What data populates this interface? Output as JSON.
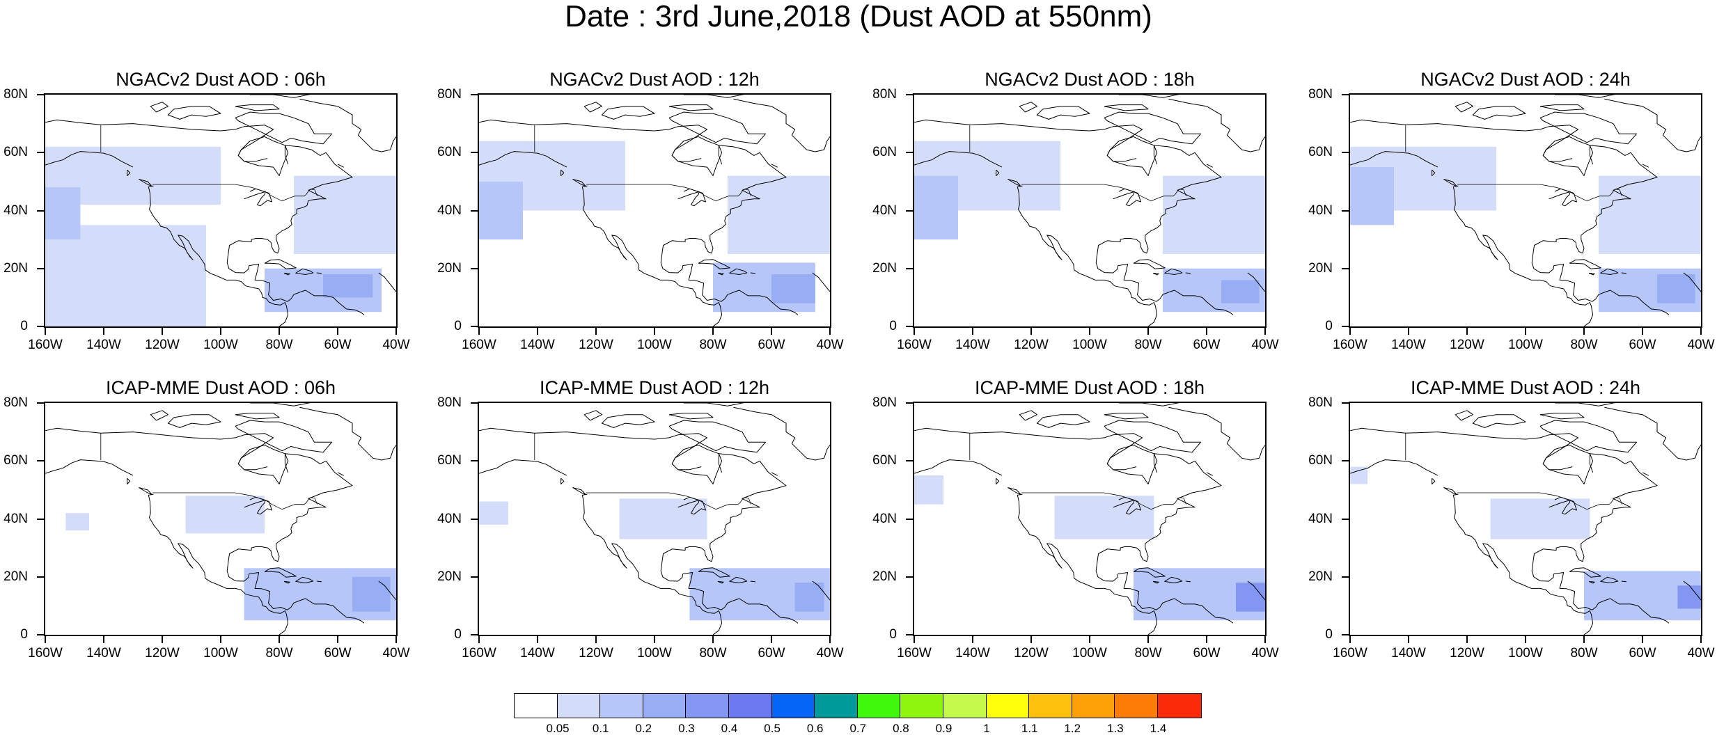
{
  "title": "Date : 3rd June,2018 (Dust AOD at 550nm)",
  "panels": [
    {
      "title": "NGACv2 Dust AOD : 06h",
      "model": "NGACv2",
      "hour": "06h",
      "field": [
        {
          "lat": [
            42,
            62
          ],
          "lon": [
            -160,
            -100
          ],
          "aod": 0.07
        },
        {
          "lat": [
            0,
            35
          ],
          "lon": [
            -160,
            -105
          ],
          "aod": 0.07
        },
        {
          "lat": [
            25,
            52
          ],
          "lon": [
            -75,
            -40
          ],
          "aod": 0.07
        },
        {
          "lat": [
            30,
            48
          ],
          "lon": [
            -160,
            -148
          ],
          "aod": 0.15
        },
        {
          "lat": [
            5,
            20
          ],
          "lon": [
            -85,
            -45
          ],
          "aod": 0.15
        },
        {
          "lat": [
            10,
            18
          ],
          "lon": [
            -65,
            -48
          ],
          "aod": 0.25
        }
      ]
    },
    {
      "title": "NGACv2 Dust AOD : 12h",
      "model": "NGACv2",
      "hour": "12h",
      "field": [
        {
          "lat": [
            40,
            64
          ],
          "lon": [
            -160,
            -110
          ],
          "aod": 0.07
        },
        {
          "lat": [
            25,
            52
          ],
          "lon": [
            -75,
            -40
          ],
          "aod": 0.07
        },
        {
          "lat": [
            30,
            50
          ],
          "lon": [
            -160,
            -145
          ],
          "aod": 0.15
        },
        {
          "lat": [
            5,
            22
          ],
          "lon": [
            -80,
            -45
          ],
          "aod": 0.15
        },
        {
          "lat": [
            8,
            18
          ],
          "lon": [
            -60,
            -45
          ],
          "aod": 0.25
        }
      ]
    },
    {
      "title": "NGACv2 Dust AOD : 18h",
      "model": "NGACv2",
      "hour": "18h",
      "field": [
        {
          "lat": [
            40,
            64
          ],
          "lon": [
            -160,
            -110
          ],
          "aod": 0.07
        },
        {
          "lat": [
            25,
            52
          ],
          "lon": [
            -75,
            -40
          ],
          "aod": 0.07
        },
        {
          "lat": [
            30,
            52
          ],
          "lon": [
            -160,
            -145
          ],
          "aod": 0.15
        },
        {
          "lat": [
            5,
            20
          ],
          "lon": [
            -75,
            -40
          ],
          "aod": 0.15
        },
        {
          "lat": [
            8,
            16
          ],
          "lon": [
            -55,
            -42
          ],
          "aod": 0.25
        }
      ]
    },
    {
      "title": "NGACv2 Dust AOD : 24h",
      "model": "NGACv2",
      "hour": "24h",
      "field": [
        {
          "lat": [
            40,
            62
          ],
          "lon": [
            -160,
            -110
          ],
          "aod": 0.07
        },
        {
          "lat": [
            25,
            52
          ],
          "lon": [
            -75,
            -40
          ],
          "aod": 0.07
        },
        {
          "lat": [
            35,
            55
          ],
          "lon": [
            -160,
            -145
          ],
          "aod": 0.15
        },
        {
          "lat": [
            5,
            20
          ],
          "lon": [
            -75,
            -40
          ],
          "aod": 0.15
        },
        {
          "lat": [
            8,
            18
          ],
          "lon": [
            -55,
            -42
          ],
          "aod": 0.25
        }
      ]
    },
    {
      "title": "ICAP-MME Dust AOD : 06h",
      "model": "ICAP-MME",
      "hour": "06h",
      "field": [
        {
          "lat": [
            35,
            48
          ],
          "lon": [
            -112,
            -85
          ],
          "aod": 0.07
        },
        {
          "lat": [
            36,
            42
          ],
          "lon": [
            -153,
            -145
          ],
          "aod": 0.07
        },
        {
          "lat": [
            5,
            23
          ],
          "lon": [
            -92,
            -40
          ],
          "aod": 0.15
        },
        {
          "lat": [
            8,
            20
          ],
          "lon": [
            -55,
            -42
          ],
          "aod": 0.25
        }
      ]
    },
    {
      "title": "ICAP-MME Dust AOD : 12h",
      "model": "ICAP-MME",
      "hour": "12h",
      "field": [
        {
          "lat": [
            33,
            47
          ],
          "lon": [
            -112,
            -82
          ],
          "aod": 0.07
        },
        {
          "lat": [
            38,
            46
          ],
          "lon": [
            -160,
            -150
          ],
          "aod": 0.07
        },
        {
          "lat": [
            5,
            23
          ],
          "lon": [
            -88,
            -40
          ],
          "aod": 0.15
        },
        {
          "lat": [
            8,
            18
          ],
          "lon": [
            -52,
            -42
          ],
          "aod": 0.25
        }
      ]
    },
    {
      "title": "ICAP-MME Dust AOD : 18h",
      "model": "ICAP-MME",
      "hour": "18h",
      "field": [
        {
          "lat": [
            33,
            48
          ],
          "lon": [
            -112,
            -78
          ],
          "aod": 0.07
        },
        {
          "lat": [
            45,
            55
          ],
          "lon": [
            -160,
            -150
          ],
          "aod": 0.07
        },
        {
          "lat": [
            5,
            23
          ],
          "lon": [
            -85,
            -40
          ],
          "aod": 0.15
        },
        {
          "lat": [
            8,
            18
          ],
          "lon": [
            -50,
            -40
          ],
          "aod": 0.3
        }
      ]
    },
    {
      "title": "ICAP-MME Dust AOD : 24h",
      "model": "ICAP-MME",
      "hour": "24h",
      "field": [
        {
          "lat": [
            33,
            47
          ],
          "lon": [
            -112,
            -78
          ],
          "aod": 0.07
        },
        {
          "lat": [
            52,
            58
          ],
          "lon": [
            -160,
            -154
          ],
          "aod": 0.07
        },
        {
          "lat": [
            5,
            22
          ],
          "lon": [
            -80,
            -40
          ],
          "aod": 0.15
        },
        {
          "lat": [
            9,
            17
          ],
          "lon": [
            -48,
            -40
          ],
          "aod": 0.35
        }
      ]
    }
  ],
  "map": {
    "lon_range": [
      -160,
      -40
    ],
    "lat_range": [
      0,
      80
    ]
  },
  "axes": {
    "lat_ticks": [
      {
        "value": 80,
        "label": "80N"
      },
      {
        "value": 60,
        "label": "60N"
      },
      {
        "value": 40,
        "label": "40N"
      },
      {
        "value": 20,
        "label": "20N"
      },
      {
        "value": 0,
        "label": "0"
      }
    ],
    "lon_ticks": [
      {
        "value": -160,
        "label": "160W"
      },
      {
        "value": -140,
        "label": "140W"
      },
      {
        "value": -120,
        "label": "120W"
      },
      {
        "value": -100,
        "label": "100W"
      },
      {
        "value": -80,
        "label": "80W"
      },
      {
        "value": -60,
        "label": "60W"
      },
      {
        "value": -40,
        "label": "40W"
      }
    ]
  },
  "colorbar": {
    "colors": [
      "#ffffff",
      "#d3ddfa",
      "#b6c6f8",
      "#97aef5",
      "#8296f2",
      "#6a79ef",
      "#0565f6",
      "#019a9b",
      "#3ff80c",
      "#90f40e",
      "#c4fa4a",
      "#ffff0b",
      "#fec10c",
      "#fea108",
      "#fd7c07",
      "#fd2a09"
    ],
    "labels": [
      "0.05",
      "0.1",
      "0.2",
      "0.3",
      "0.4",
      "0.5",
      "0.6",
      "0.7",
      "0.8",
      "0.9",
      "1",
      "1.1",
      "1.2",
      "1.3",
      "1.4"
    ]
  }
}
